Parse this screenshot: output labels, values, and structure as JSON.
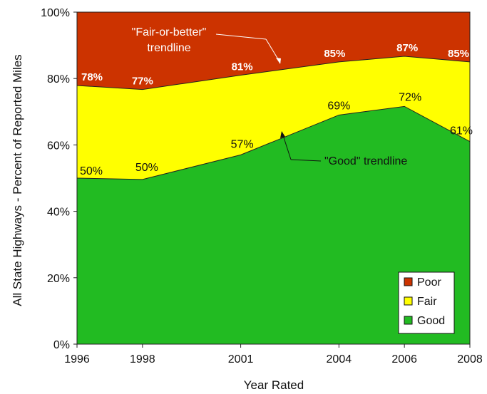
{
  "chart_data": {
    "type": "area",
    "stacked": true,
    "x": [
      1996,
      1998,
      2001,
      2004,
      2006,
      2008
    ],
    "x_tick_labels": [
      "1996",
      "1998",
      "2001",
      "2004",
      "2006",
      "2008"
    ],
    "xlabel": "Year Rated",
    "ylabel": "All State Highways - Percent of Reported Miles",
    "ylim": [
      0,
      100
    ],
    "y_ticks": [
      0,
      20,
      40,
      60,
      80,
      100
    ],
    "y_tick_labels": [
      "0%",
      "20%",
      "40%",
      "60%",
      "80%",
      "100%"
    ],
    "grid": false,
    "legend_position": "bottom-right",
    "series": [
      {
        "name": "Good",
        "color": "#22bb22",
        "values": [
          50,
          49.6,
          57,
          69,
          71.6,
          61
        ],
        "labels": [
          "50%",
          "50%",
          "57%",
          "69%",
          "72%",
          "61%"
        ]
      },
      {
        "name": "Fair",
        "color": "#ffff00",
        "values": [
          27.9,
          27.1,
          24,
          16,
          15.1,
          24
        ],
        "labels": []
      },
      {
        "name": "Poor",
        "color": "#cc3300",
        "values": [
          22.1,
          23.3,
          19,
          15,
          13.3,
          15
        ],
        "labels": []
      }
    ],
    "fair_or_better_values": [
      77.9,
      76.7,
      81,
      85,
      86.7,
      85
    ],
    "fair_or_better_labels": [
      "78%",
      "77%",
      "81%",
      "85%",
      "87%",
      "85%"
    ],
    "annotations": [
      {
        "lines": [
          "\"Fair-or-better\"",
          "trendline"
        ],
        "target": "fair_or_better"
      },
      {
        "lines": [
          "\"Good\" trendline"
        ],
        "target": "good"
      }
    ],
    "legend_order": [
      "Poor",
      "Fair",
      "Good"
    ]
  }
}
